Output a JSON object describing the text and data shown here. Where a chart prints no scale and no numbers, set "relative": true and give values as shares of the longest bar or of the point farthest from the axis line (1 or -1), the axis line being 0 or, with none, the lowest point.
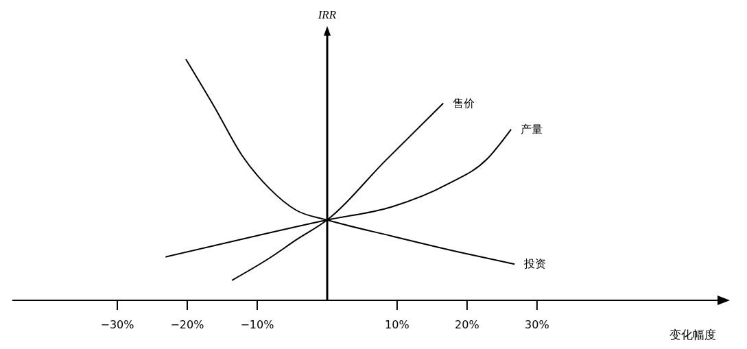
{
  "chart_data": {
    "type": "line",
    "relative": true,
    "xlabel": "变化幅度",
    "ylabel": "IRR",
    "xlim": [
      -45,
      56
    ],
    "xticks": [
      {
        "value": -30,
        "label": "−30%"
      },
      {
        "value": -20,
        "label": "−20%"
      },
      {
        "value": -10,
        "label": "−10%"
      },
      {
        "value": 10,
        "label": "10%"
      },
      {
        "value": 20,
        "label": "20%"
      },
      {
        "value": 30,
        "label": "30%"
      }
    ],
    "series": [
      {
        "name": "售价",
        "color": "#000000",
        "x": [
          -13.6,
          -8.3,
          -4.4,
          0,
          8.3,
          16.6
        ],
        "values": [
          0.083,
          0.174,
          0.251,
          0.333,
          0.578,
          0.817
        ]
      },
      {
        "name": "产量",
        "color": "#000000",
        "x": [
          -23.1,
          -11.2,
          0,
          9.3,
          17.1,
          22.9,
          26.3
        ],
        "values": [
          0.18,
          0.26,
          0.333,
          0.388,
          0.48,
          0.587,
          0.709
        ]
      },
      {
        "name": "投资",
        "color": "#000000",
        "x": [
          -20.2,
          -16.1,
          -12.2,
          -8.3,
          -4.4,
          0,
          9.3,
          19,
          26.8
        ],
        "values": [
          1,
          0.801,
          0.602,
          0.465,
          0.373,
          0.333,
          0.266,
          0.199,
          0.15
        ]
      }
    ],
    "legend": false,
    "grid": false,
    "marker": "none",
    "line_style": "solid"
  }
}
